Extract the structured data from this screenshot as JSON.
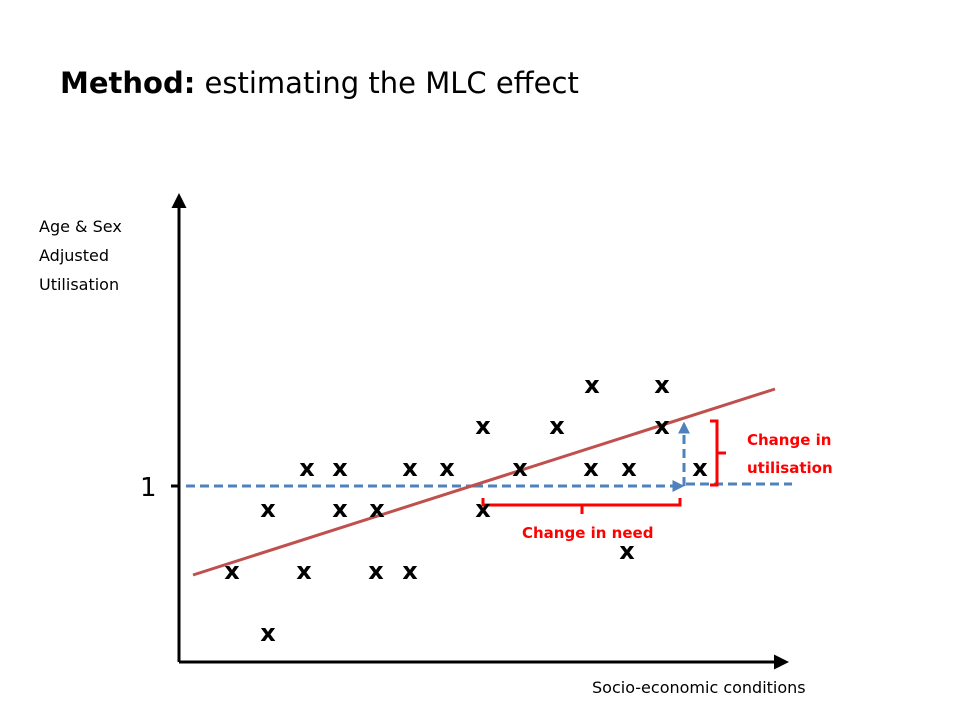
{
  "title": {
    "bold": "Method:",
    "rest": " estimating the MLC effect"
  },
  "y_axis_label": [
    "Age & Sex",
    "Adjusted",
    "Utilisation"
  ],
  "x_axis_label": "Socio-economic conditions",
  "reference_value": "1",
  "marker_glyph": "x",
  "annotations": {
    "utilisation": [
      "Change in",
      "utilisation"
    ],
    "need": "Change in need"
  },
  "colors": {
    "axis": "#000000",
    "trend_line": "#c0504d",
    "dashed_arrow": "#4f81bd",
    "bracket": "#ff0000",
    "annotation_text": "#ff0000"
  }
}
